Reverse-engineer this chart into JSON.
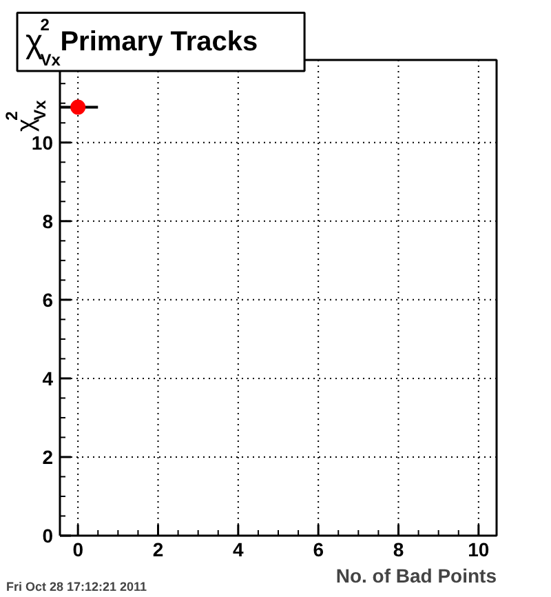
{
  "chart_data": {
    "type": "scatter",
    "title": "χ$^{2}$$_{Vx}$ Primary Tracks",
    "xlabel": "No. of Bad Points",
    "ylabel": "χ$^{2}$$_{Vx}$",
    "x": [
      0
    ],
    "series": [
      {
        "color": "#ff0000",
        "values": [
          10.9
        ],
        "xerrors": [
          0.5
        ]
      }
    ],
    "xlim": [
      -0.45,
      10.45
    ],
    "ylim": [
      0,
      12.1
    ],
    "xticks": [
      0,
      2,
      4,
      6,
      8,
      10
    ],
    "yticks": [
      0,
      2,
      4,
      6,
      8,
      10
    ],
    "grid": true,
    "marker": "circle",
    "annotations": [
      "Fri Oct 28 17:12:21 2011"
    ]
  }
}
